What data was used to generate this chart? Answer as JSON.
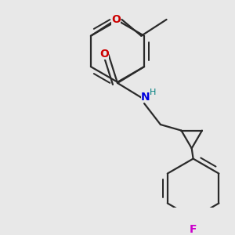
{
  "background_color": "#e8e8e8",
  "bond_color": "#2a2a2a",
  "bond_width": 1.6,
  "dbo": 0.018,
  "atom_colors": {
    "O": "#cc0000",
    "N": "#0000dd",
    "H": "#008080",
    "F": "#cc00cc",
    "C": "#2a2a2a"
  },
  "font_size": 10,
  "fig_size": [
    3.0,
    3.0
  ],
  "dpi": 100
}
